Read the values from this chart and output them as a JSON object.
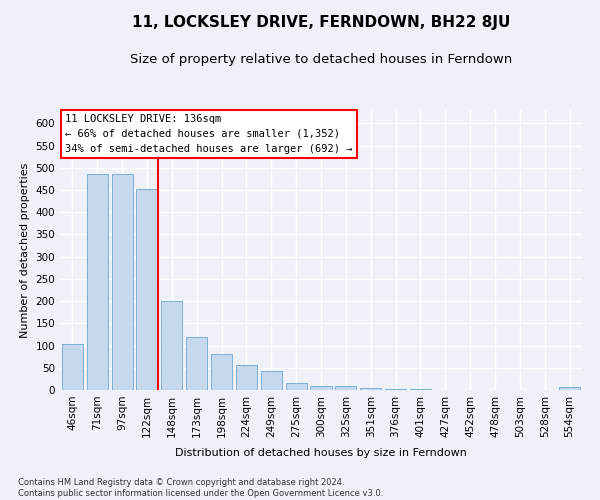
{
  "title": "11, LOCKSLEY DRIVE, FERNDOWN, BH22 8JU",
  "subtitle": "Size of property relative to detached houses in Ferndown",
  "xlabel": "Distribution of detached houses by size in Ferndown",
  "ylabel": "Number of detached properties",
  "footnote": "Contains HM Land Registry data © Crown copyright and database right 2024.\nContains public sector information licensed under the Open Government Licence v3.0.",
  "bar_color": "#c5d8ed",
  "bar_edge_color": "#7aafd4",
  "categories": [
    "46sqm",
    "71sqm",
    "97sqm",
    "122sqm",
    "148sqm",
    "173sqm",
    "198sqm",
    "224sqm",
    "249sqm",
    "275sqm",
    "300sqm",
    "325sqm",
    "351sqm",
    "376sqm",
    "401sqm",
    "427sqm",
    "452sqm",
    "478sqm",
    "503sqm",
    "528sqm",
    "554sqm"
  ],
  "values": [
    103,
    487,
    487,
    452,
    200,
    120,
    82,
    57,
    42,
    15,
    10,
    10,
    5,
    2,
    2,
    0,
    0,
    0,
    0,
    0,
    7
  ],
  "ylim": [
    0,
    630
  ],
  "yticks": [
    0,
    50,
    100,
    150,
    200,
    250,
    300,
    350,
    400,
    450,
    500,
    550,
    600
  ],
  "bg_color": "#eef2f8",
  "grid_color": "#ffffff",
  "title_fontsize": 11,
  "subtitle_fontsize": 9.5,
  "axis_fontsize": 8,
  "tick_fontsize": 7.5,
  "annotation_fontsize": 7.5,
  "annotation_title": "11 LOCKSLEY DRIVE: 136sqm",
  "annotation_line1": "← 66% of detached houses are smaller (1,352)",
  "annotation_line2": "34% of semi-detached houses are larger (692) →"
}
